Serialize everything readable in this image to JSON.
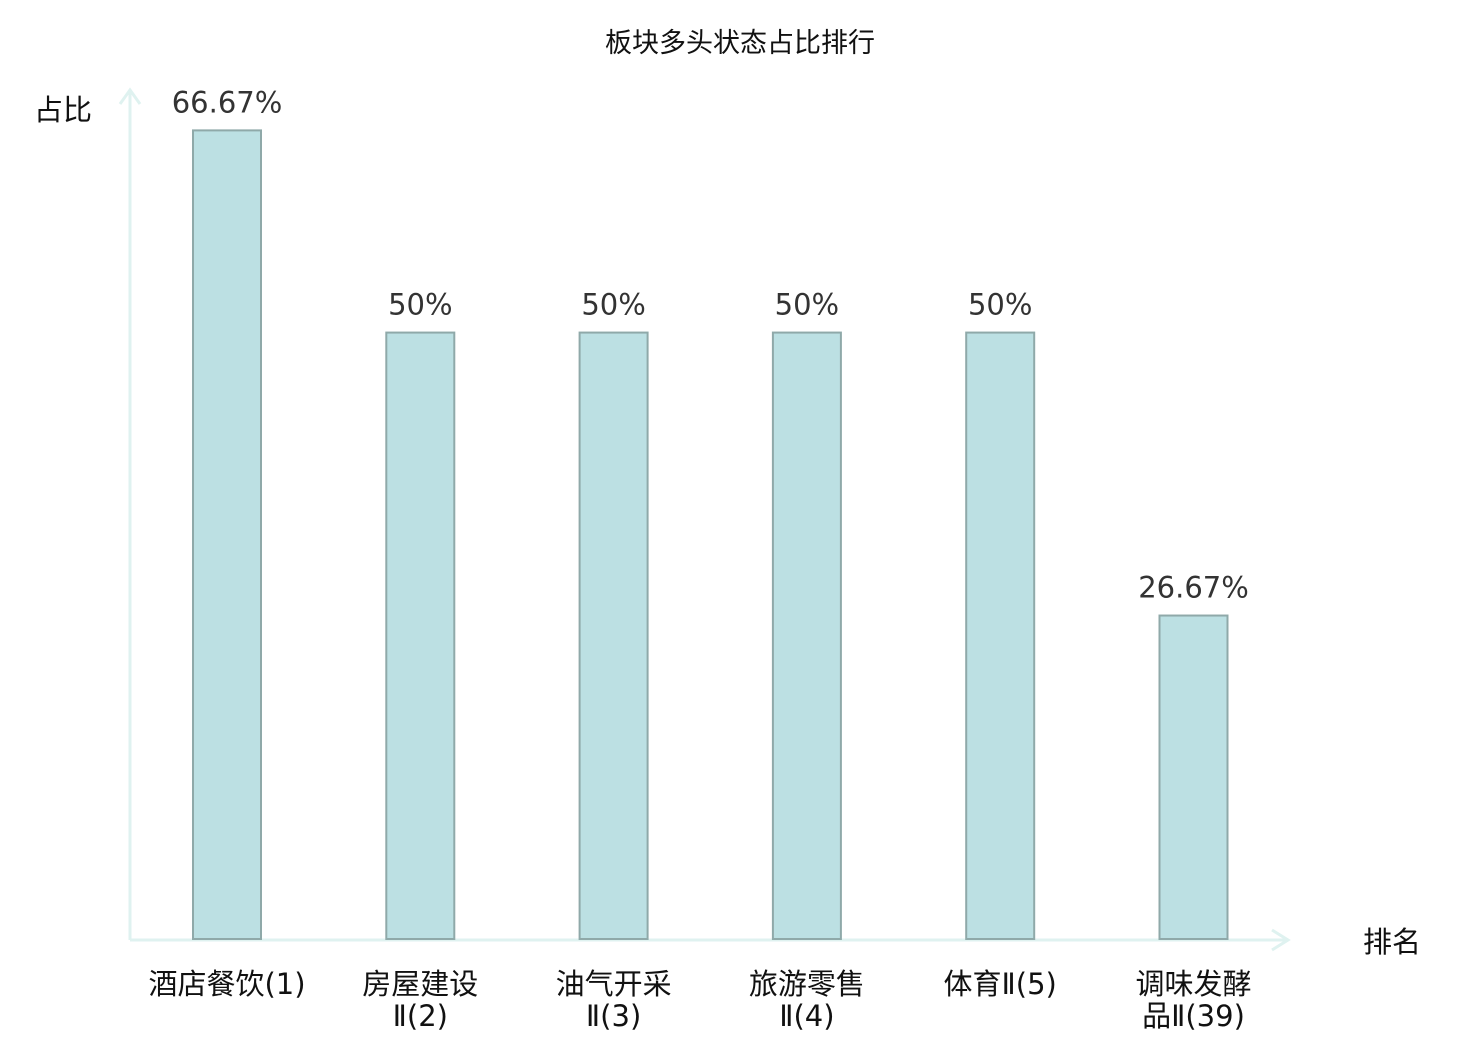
{
  "chart_data": {
    "type": "bar",
    "title": "板块多头状态占比排行",
    "xlabel": "排名",
    "ylabel": "占比",
    "categories": [
      "酒店餐饮(1)",
      "房屋建设Ⅱ(2)",
      "油气开采Ⅱ(3)",
      "旅游零售Ⅱ(4)",
      "体育Ⅱ(5)",
      "调味发酵品Ⅱ(39)"
    ],
    "values": [
      66.67,
      50,
      50,
      50,
      50,
      26.67
    ],
    "data_labels": [
      "66.67%",
      "50%",
      "50%",
      "50%",
      "50%",
      "26.67%"
    ],
    "highlight_category_index": 5,
    "ylim": [
      0,
      70
    ],
    "grid": false,
    "colors": {
      "bar_fill": "#bce0e3",
      "bar_stroke": "#8fa9a9",
      "axis": "#dff2f0",
      "highlight_label": "#e00000",
      "label": "#111111",
      "data_label": "#333333"
    }
  }
}
